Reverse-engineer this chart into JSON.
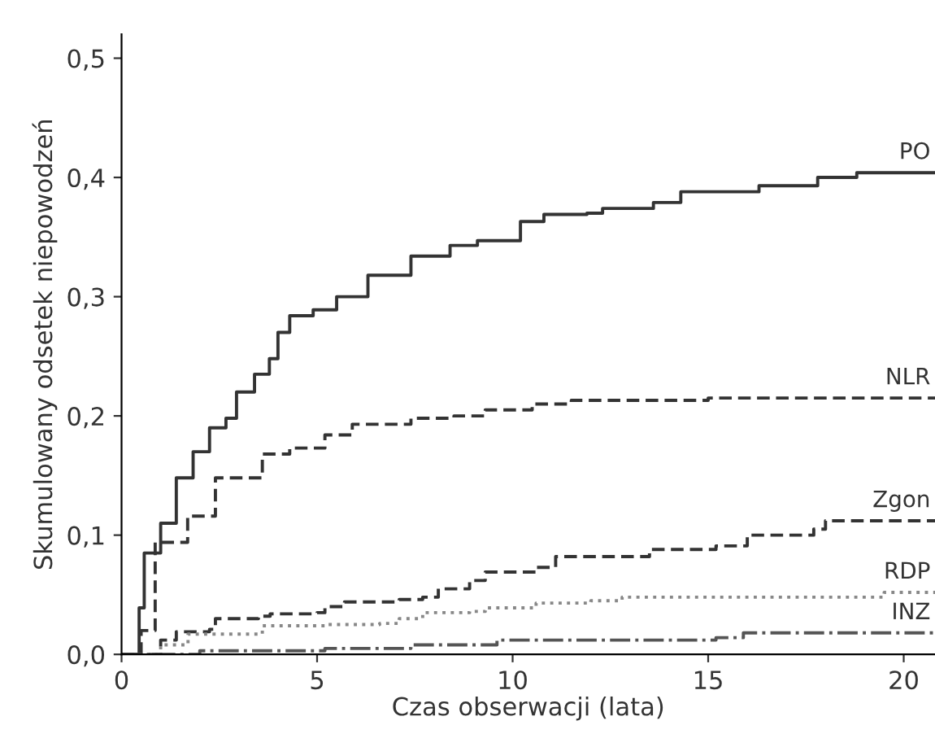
{
  "chart_data": {
    "type": "step",
    "xlabel": "Czas obserwacji (lata)",
    "ylabel": "Skumulowany odsetek niepowodzeń",
    "xlim": [
      0,
      20.8
    ],
    "xticks": [
      0,
      5,
      10,
      15,
      20
    ],
    "ylim": [
      0,
      0.52
    ],
    "yticks": [
      {
        "value": 0,
        "label": "0,0"
      },
      {
        "value": 0.1,
        "label": "0,1"
      },
      {
        "value": 0.2,
        "label": "0,2"
      },
      {
        "value": 0.3,
        "label": "0,3"
      },
      {
        "value": 0.4,
        "label": "0,4"
      },
      {
        "value": 0.5,
        "label": "0,5"
      }
    ],
    "grid": false,
    "legend": false,
    "marker": "none",
    "series": [
      {
        "name": "PO",
        "color": "#333333",
        "line_style": "solid",
        "x": [
          0,
          0.45,
          0.58,
          1.0,
          1.4,
          1.83,
          2.25,
          2.67,
          2.94,
          3.4,
          3.78,
          4.0,
          4.3,
          4.9,
          5.5,
          6.3,
          7.4,
          8.4,
          9.1,
          9.33,
          10.2,
          10.8,
          11.9,
          12.3,
          13.4,
          13.6,
          14.3,
          16.3,
          17.8,
          18.8,
          20.8
        ],
        "values": [
          0,
          0.039,
          0.085,
          0.11,
          0.148,
          0.17,
          0.19,
          0.198,
          0.22,
          0.235,
          0.248,
          0.27,
          0.284,
          0.289,
          0.3,
          0.318,
          0.334,
          0.343,
          0.347,
          0.347,
          0.363,
          0.369,
          0.37,
          0.374,
          0.374,
          0.379,
          0.388,
          0.393,
          0.4,
          0.404,
          0.404
        ]
      },
      {
        "name": "NLR",
        "color": "#333333",
        "line_style": "dashed",
        "x": [
          0,
          0.5,
          0.86,
          1.69,
          2.4,
          3.1,
          3.6,
          4.3,
          5.2,
          5.9,
          6.6,
          7.4,
          8.5,
          9.3,
          10.5,
          11.5,
          15,
          20.8
        ],
        "values": [
          0,
          0.02,
          0.094,
          0.116,
          0.148,
          0.148,
          0.168,
          0.173,
          0.184,
          0.193,
          0.193,
          0.198,
          0.2,
          0.205,
          0.21,
          0.213,
          0.215,
          0.215
        ]
      },
      {
        "name": "Zgon",
        "color": "#333333",
        "line_style": "dashed",
        "x": [
          0.72,
          1.0,
          1.4,
          2.25,
          2.4,
          3.5,
          3.8,
          5.0,
          5.2,
          5.7,
          7.1,
          7.7,
          8.1,
          8.9,
          9.3,
          10.6,
          11.1,
          13.1,
          13.5,
          15.2,
          16.0,
          17.7,
          18.0,
          20.8
        ],
        "values": [
          0,
          0.012,
          0.019,
          0.021,
          0.03,
          0.032,
          0.034,
          0.035,
          0.04,
          0.044,
          0.046,
          0.048,
          0.055,
          0.062,
          0.069,
          0.073,
          0.082,
          0.082,
          0.088,
          0.091,
          0.1,
          0.105,
          0.112,
          0.112
        ]
      },
      {
        "name": "RDP",
        "color": "#888888",
        "line_style": "dotted",
        "x": [
          0.7,
          1.0,
          1.7,
          3.2,
          3.6,
          5.2,
          6.6,
          7.1,
          7.7,
          8.9,
          9.3,
          10.6,
          12.0,
          12.8,
          19.2,
          19.5,
          20.8
        ],
        "values": [
          0,
          0.008,
          0.017,
          0.017,
          0.024,
          0.025,
          0.026,
          0.03,
          0.035,
          0.036,
          0.039,
          0.043,
          0.045,
          0.048,
          0.048,
          0.052,
          0.052
        ]
      },
      {
        "name": "INZ",
        "color": "#555555",
        "line_style": "dashdot",
        "x": [
          0,
          2.0,
          4.7,
          5.2,
          7.4,
          9.6,
          15.2,
          15.9,
          20.8
        ],
        "values": [
          0,
          0.003,
          0.003,
          0.005,
          0.008,
          0.012,
          0.014,
          0.018,
          0.018
        ]
      }
    ]
  }
}
